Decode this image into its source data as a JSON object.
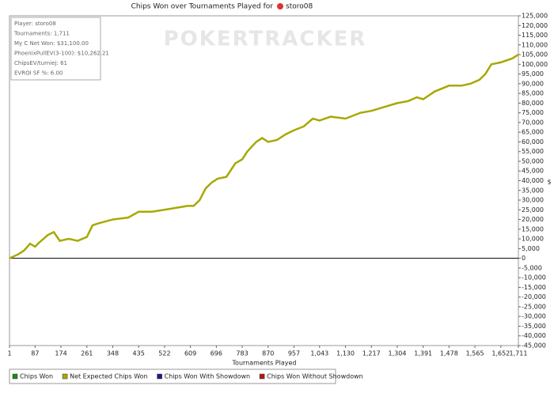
{
  "chart_data": {
    "type": "line",
    "title": "Chips Won over Tournaments Played for",
    "player": "storo08",
    "watermark": "POKERTRACKER",
    "info": [
      "Player: storo08",
      "Tournaments: 1,711",
      "My C Net Won: $31,100.00",
      "PhoenixPullEV(3-100): $10,262.21",
      "ChipsEV/turniej: 61",
      "EVROI SF %: 6.00"
    ],
    "x_label": "Tournaments Played",
    "y_label": "$",
    "xlim": [
      1,
      1711
    ],
    "xticks": [
      1,
      87,
      174,
      261,
      348,
      435,
      522,
      609,
      696,
      783,
      870,
      957,
      {
        "value": 1043,
        "label": "1,043"
      },
      {
        "value": 1130,
        "label": "1,130"
      },
      {
        "value": 1217,
        "label": "1,217"
      },
      {
        "value": 1304,
        "label": "1,304"
      },
      {
        "value": 1391,
        "label": "1,391"
      },
      {
        "value": 1478,
        "label": "1,478"
      },
      {
        "value": 1565,
        "label": "1,565"
      },
      {
        "value": 1652,
        "label": "1,652"
      },
      {
        "value": 1711,
        "label": "1,711"
      }
    ],
    "ylim": [
      -45000,
      125000
    ],
    "yticks": [
      {
        "value": -45000,
        "label": "-45,000"
      },
      {
        "value": -40000,
        "label": "-40,000"
      },
      {
        "value": -35000,
        "label": "-35,000"
      },
      {
        "value": -30000,
        "label": "-30,000"
      },
      {
        "value": -25000,
        "label": "-25,000"
      },
      {
        "value": -20000,
        "label": "-20,000"
      },
      {
        "value": -15000,
        "label": "-15,000"
      },
      {
        "value": -10000,
        "label": "-10,000"
      },
      {
        "value": -5000,
        "label": "-5,000"
      },
      0,
      {
        "value": 5000,
        "label": "5,000"
      },
      {
        "value": 10000,
        "label": "10,000"
      },
      {
        "value": 15000,
        "label": "15,000"
      },
      {
        "value": 20000,
        "label": "20,000"
      },
      {
        "value": 25000,
        "label": "25,000"
      },
      {
        "value": 30000,
        "label": "30,000"
      },
      {
        "value": 35000,
        "label": "35,000"
      },
      {
        "value": 40000,
        "label": "40,000"
      },
      {
        "value": 45000,
        "label": "45,000"
      },
      {
        "value": 50000,
        "label": "50,000"
      },
      {
        "value": 55000,
        "label": "55,000"
      },
      {
        "value": 60000,
        "label": "60,000"
      },
      {
        "value": 65000,
        "label": "65,000"
      },
      {
        "value": 70000,
        "label": "70,000"
      },
      {
        "value": 75000,
        "label": "75,000"
      },
      {
        "value": 80000,
        "label": "80,000"
      },
      {
        "value": 85000,
        "label": "85,000"
      },
      {
        "value": 90000,
        "label": "90,000"
      },
      {
        "value": 95000,
        "label": "95,000"
      },
      {
        "value": 100000,
        "label": "100,000"
      },
      {
        "value": 105000,
        "label": "105,000"
      },
      {
        "value": 110000,
        "label": "110,000"
      },
      {
        "value": 115000,
        "label": "115,000"
      },
      {
        "value": 120000,
        "label": "120,000"
      },
      {
        "value": 125000,
        "label": "125,000"
      }
    ],
    "x": [
      1,
      30,
      50,
      70,
      87,
      100,
      130,
      150,
      170,
      200,
      230,
      261,
      280,
      300,
      348,
      400,
      435,
      480,
      522,
      560,
      600,
      620,
      640,
      660,
      680,
      700,
      730,
      760,
      783,
      800,
      830,
      850,
      870,
      900,
      930,
      957,
      990,
      1020,
      1043,
      1080,
      1130,
      1180,
      1217,
      1260,
      1304,
      1340,
      1370,
      1391,
      1430,
      1478,
      1520,
      1550,
      1580,
      1600,
      1620,
      1652,
      1690,
      1711
    ],
    "series": [
      {
        "name": "Net Expected Chips Won",
        "color": "#a8a800",
        "values": [
          0,
          2000,
          4000,
          7500,
          6000,
          8000,
          12000,
          13500,
          9000,
          10000,
          9000,
          11000,
          17000,
          18000,
          20000,
          21000,
          24000,
          24000,
          25000,
          26000,
          27000,
          27000,
          30000,
          36000,
          39000,
          41000,
          42000,
          49000,
          51000,
          55000,
          60000,
          62000,
          60000,
          61000,
          64000,
          66000,
          68000,
          72000,
          71000,
          73000,
          72000,
          75000,
          76000,
          78000,
          80000,
          81000,
          83000,
          82000,
          86000,
          89000,
          89000,
          90000,
          92000,
          95000,
          100000,
          101000,
          103000,
          105000
        ]
      }
    ],
    "legend": [
      {
        "name": "Chips Won",
        "color": "#1a8a1a"
      },
      {
        "name": "Net Expected Chips Won",
        "color": "#a8a800"
      },
      {
        "name": "Chips Won With Showdown",
        "color": "#1a1a8a"
      },
      {
        "name": "Chips Won Without Showdown",
        "color": "#b01818"
      }
    ]
  }
}
